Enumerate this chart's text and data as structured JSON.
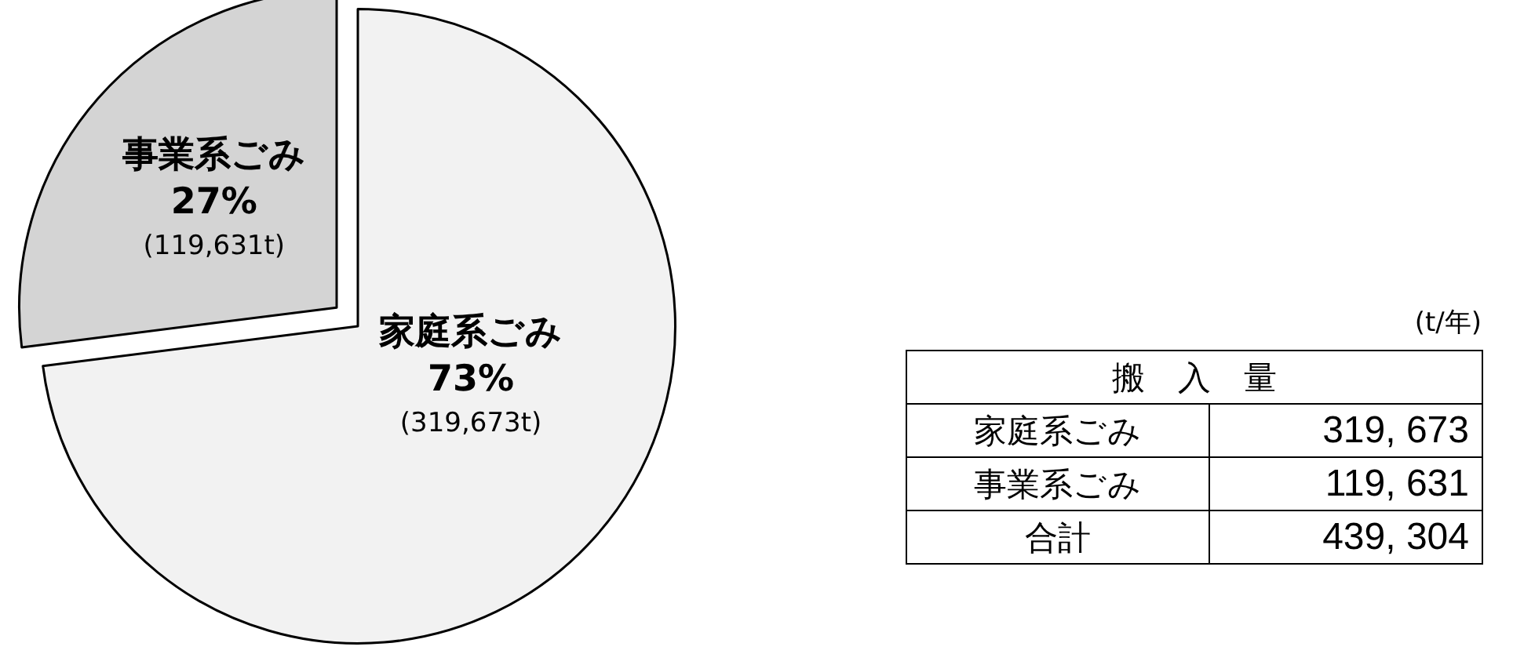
{
  "chart_data": {
    "type": "pie",
    "categories": [
      "家庭系ごみ",
      "事業系ごみ"
    ],
    "values": [
      73,
      27
    ],
    "colors": [
      "#f2f2f2",
      "#d4d4d4"
    ],
    "value_labels": [
      "73%\n(319,673t)",
      "27%\n(119,631t)"
    ],
    "annotations": [
      "(t/年)",
      "搬　入　量",
      "319, 673",
      "119, 631",
      "合計",
      "439, 304"
    ],
    "legend": false
  }
}
